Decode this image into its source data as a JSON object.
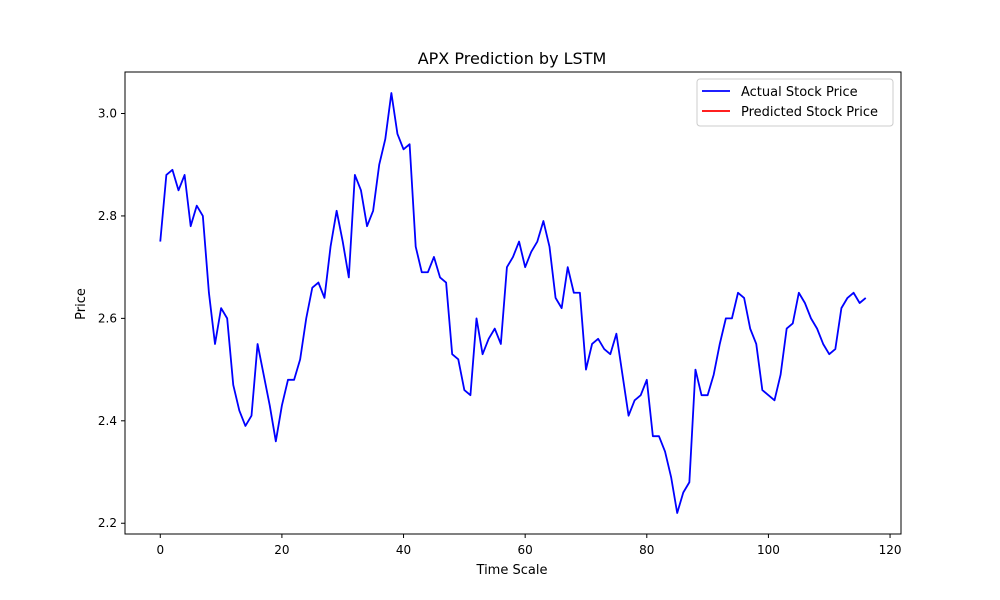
{
  "chart_data": {
    "type": "line",
    "title": "APX Prediction by LSTM",
    "xlabel": "Time Scale",
    "ylabel": "Price",
    "xlim": [
      -5.8,
      121.8
    ],
    "ylim": [
      2.179,
      3.081
    ],
    "x_ticks": [
      0,
      20,
      40,
      60,
      80,
      100,
      120
    ],
    "y_ticks": [
      2.2,
      2.4,
      2.6,
      2.8,
      3.0
    ],
    "x_tick_labels": [
      "0",
      "20",
      "40",
      "60",
      "80",
      "100",
      "120"
    ],
    "y_tick_labels": [
      "2.2",
      "2.4",
      "2.6",
      "2.8",
      "3.0"
    ],
    "grid": false,
    "legend_position": "top-right",
    "series": [
      {
        "name": "Actual Stock Price",
        "color": "#0000ff",
        "values": [
          2.75,
          2.88,
          2.89,
          2.85,
          2.88,
          2.78,
          2.82,
          2.8,
          2.65,
          2.55,
          2.62,
          2.6,
          2.47,
          2.42,
          2.39,
          2.41,
          2.55,
          2.49,
          2.43,
          2.36,
          2.43,
          2.48,
          2.48,
          2.52,
          2.6,
          2.66,
          2.67,
          2.64,
          2.74,
          2.81,
          2.75,
          2.68,
          2.88,
          2.85,
          2.78,
          2.81,
          2.9,
          2.95,
          3.04,
          2.96,
          2.93,
          2.94,
          2.74,
          2.69,
          2.69,
          2.72,
          2.68,
          2.67,
          2.53,
          2.52,
          2.46,
          2.45,
          2.6,
          2.53,
          2.56,
          2.58,
          2.55,
          2.7,
          2.72,
          2.75,
          2.7,
          2.73,
          2.75,
          2.79,
          2.74,
          2.64,
          2.62,
          2.7,
          2.65,
          2.65,
          2.5,
          2.55,
          2.56,
          2.54,
          2.53,
          2.57,
          2.49,
          2.41,
          2.44,
          2.45,
          2.48,
          2.37,
          2.37,
          2.34,
          2.29,
          2.22,
          2.26,
          2.28,
          2.5,
          2.45,
          2.45,
          2.49,
          2.55,
          2.6,
          2.6,
          2.65,
          2.64,
          2.58,
          2.55,
          2.46,
          2.45,
          2.44,
          2.49,
          2.58,
          2.59,
          2.65,
          2.63,
          2.6,
          2.58,
          2.55,
          2.53,
          2.54,
          2.62,
          2.64,
          2.65,
          2.63,
          2.64
        ]
      },
      {
        "name": "Predicted Stock Price",
        "color": "#ff0000",
        "values": []
      }
    ]
  }
}
